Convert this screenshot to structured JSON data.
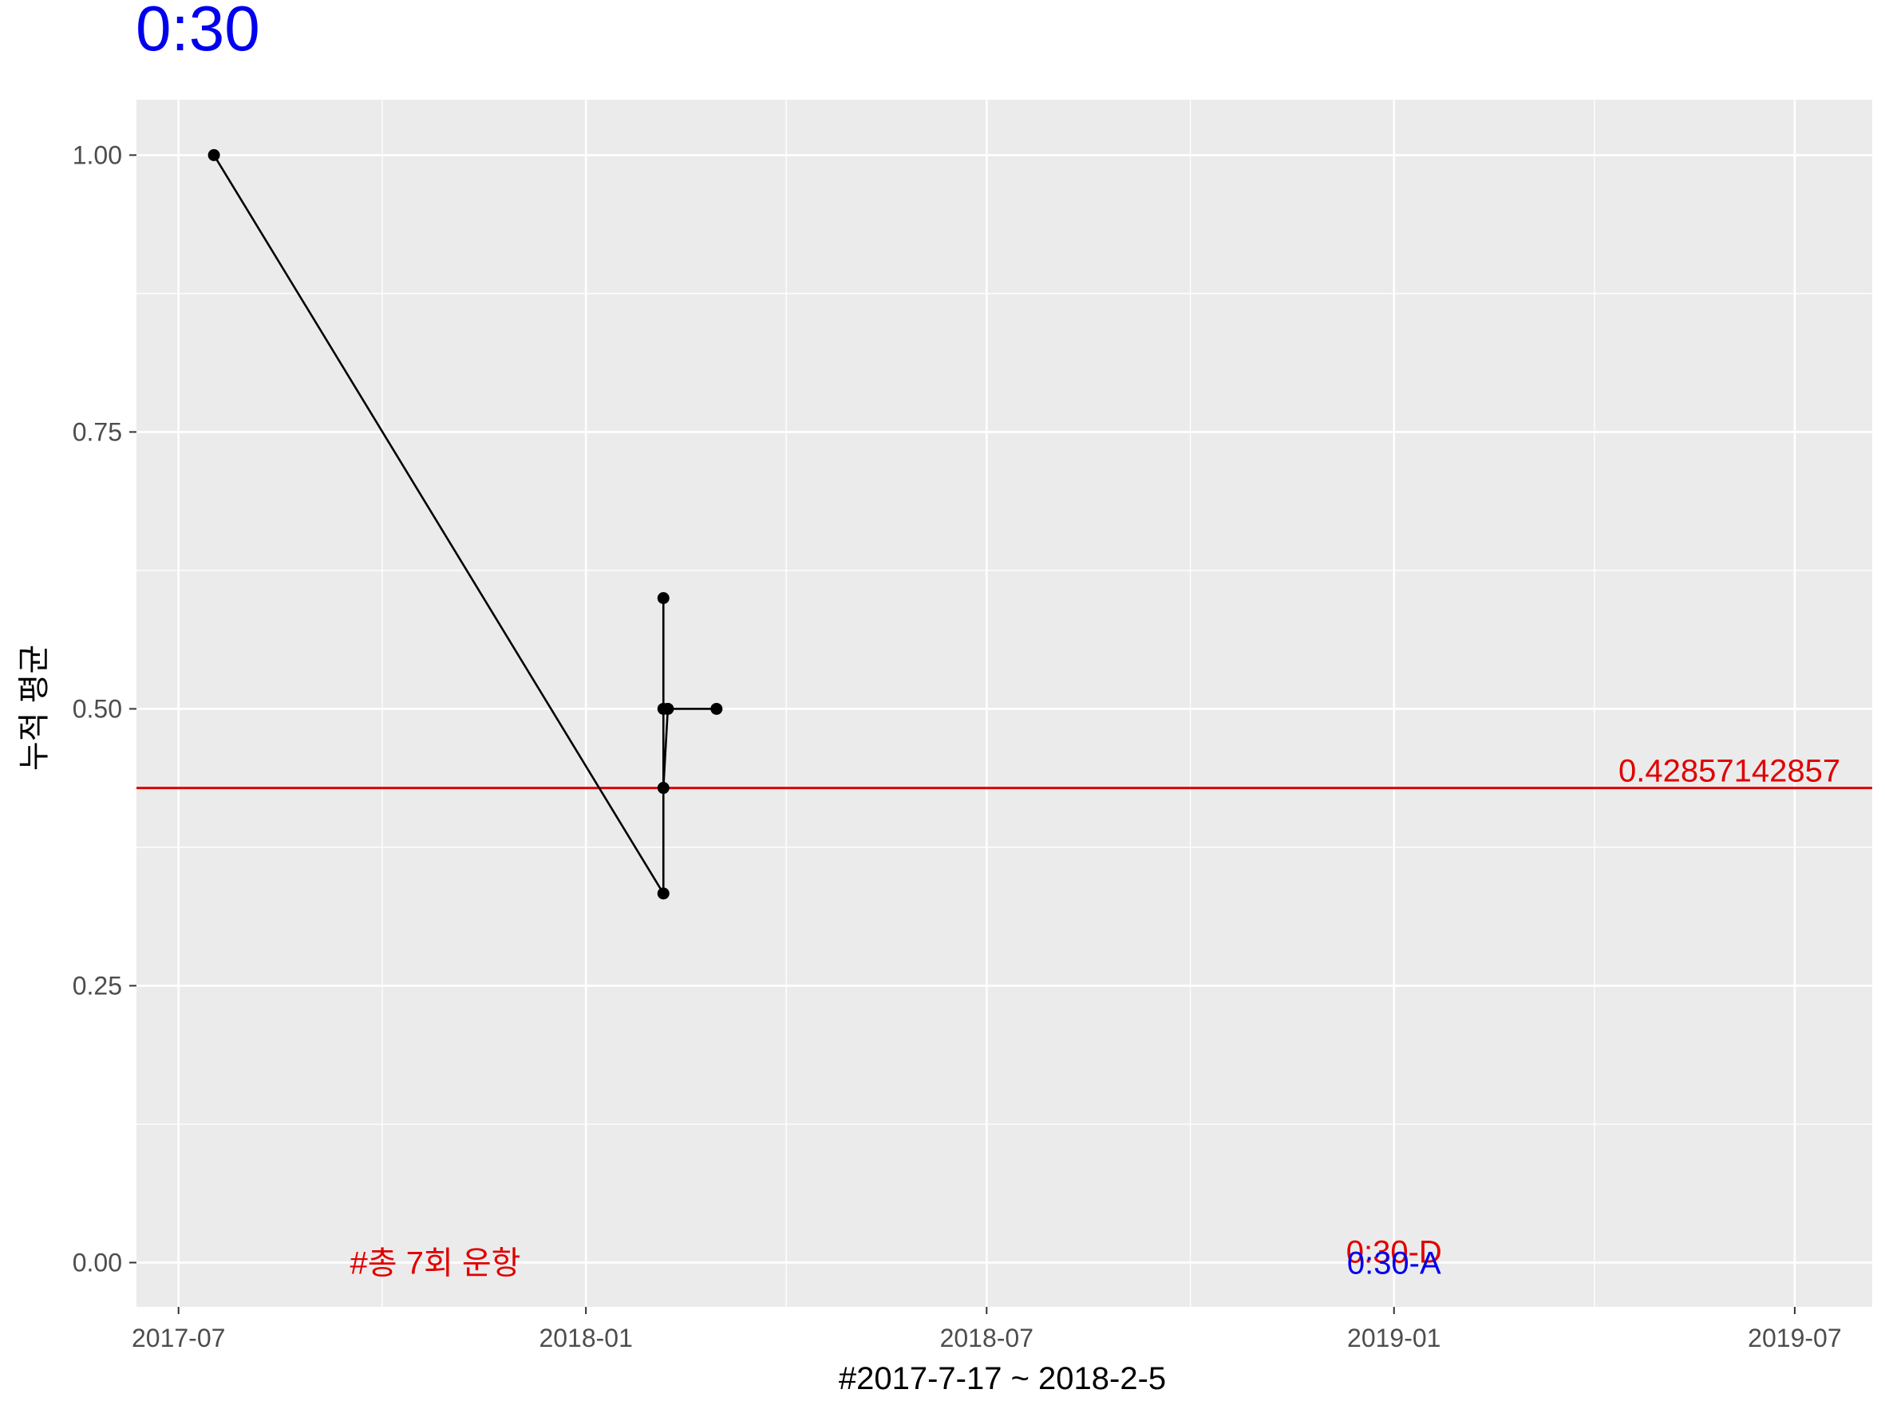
{
  "chart_data": {
    "type": "line",
    "title": "0:30",
    "xlabel": "#2017-7-17 ~ 2018-2-5",
    "ylabel": "누적 평균",
    "x_ticks": [
      "2017-07",
      "2018-01",
      "2018-07",
      "2019-01",
      "2019-07"
    ],
    "y_ticks": [
      "0.00",
      "0.25",
      "0.50",
      "0.75",
      "1.00"
    ],
    "xlim": [
      "2017-06-12",
      "2019-08-05"
    ],
    "ylim": [
      -0.04,
      1.05
    ],
    "grid": true,
    "series": [
      {
        "x": [
          "2017-07-17",
          "2018-02-05",
          "2018-02-05",
          "2018-02-05",
          "2018-02-05",
          "2018-02-07",
          "2018-02-07",
          "2018-03-01"
        ],
        "values": [
          1.0,
          0.3333,
          0.6,
          0.5,
          0.4286,
          0.5,
          0.5,
          0.5
        ]
      }
    ],
    "hline": {
      "value": 0.428571428571,
      "label": "0.42857142857",
      "color": "#e00000"
    },
    "annotations": [
      {
        "text": "#총 7회 운항",
        "x": "2017-10-25",
        "y": 0.0,
        "color": "#e00000"
      },
      {
        "text": "0:30-D",
        "x": "2019-01-01",
        "y": 0.01,
        "color": "#e00000"
      },
      {
        "text": "0:30-A",
        "x": "2019-01-01",
        "y": 0.0,
        "color": "#0000ee"
      }
    ],
    "colors": {
      "title": "#0000ee",
      "line": "#000000",
      "panel": "#ebebeb",
      "grid": "#ffffff"
    }
  }
}
